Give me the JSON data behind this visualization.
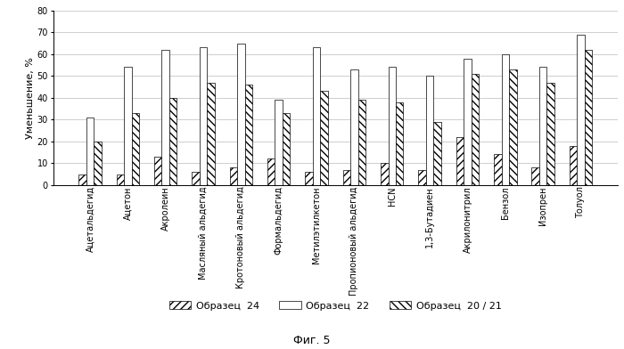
{
  "categories": [
    "Ацетальдегид",
    "Ацетон",
    "Акролеин",
    "Масляный альдегид",
    "Кротоновый альдегид",
    "Формальдегид",
    "Метилэтилкетон",
    "Пропионовый альдегид",
    "HCN",
    "1,3-Бутадиен",
    "Акрилонитрил",
    "Бензол",
    "Изопрен",
    "Толуол"
  ],
  "series": {
    "Образец  24": [
      5,
      5,
      13,
      6,
      8,
      12,
      6,
      7,
      10,
      7,
      22,
      14,
      8,
      18
    ],
    "Образец  22": [
      31,
      54,
      62,
      63,
      65,
      39,
      63,
      53,
      54,
      50,
      58,
      60,
      54,
      69
    ],
    "Образец  20 / 21": [
      20,
      33,
      40,
      47,
      46,
      33,
      43,
      39,
      38,
      29,
      51,
      53,
      47,
      62
    ]
  },
  "ylabel": "Уменьшение, %",
  "ylim": [
    0,
    80
  ],
  "yticks": [
    0,
    10,
    20,
    30,
    40,
    50,
    60,
    70,
    80
  ],
  "fig_caption": "Фиг. 5",
  "legend_labels": [
    "Образец  24",
    "Образец  22",
    "Образец  20 / 21"
  ],
  "hatch_patterns": [
    "////",
    "====",
    "\\\\\\\\"
  ],
  "bar_edge_color": "#000000",
  "bar_face_color": "#ffffff",
  "grid_color": "#bbbbbb",
  "fontsize_ticks": 7,
  "fontsize_ylabel": 8,
  "fontsize_legend": 8,
  "fontsize_caption": 9
}
